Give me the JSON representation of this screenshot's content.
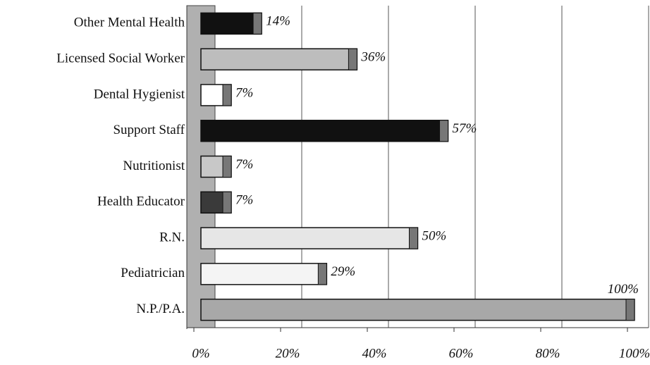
{
  "chart_data": {
    "type": "bar",
    "orientation": "horizontal",
    "categories": [
      "Other Mental Health",
      "Licensed Social Worker",
      "Dental Hygienist",
      "Support Staff",
      "Nutritionist",
      "Health Educator",
      "R.N.",
      "Pediatrician",
      "N.P./P.A."
    ],
    "values": [
      14,
      36,
      7,
      57,
      7,
      7,
      50,
      29,
      100
    ],
    "value_labels": [
      "14%",
      "36%",
      "7%",
      "57%",
      "7%",
      "7%",
      "50%",
      "29%",
      "100%"
    ],
    "colors": [
      "#111111",
      "#bdbdbd",
      "#ffffff",
      "#111111",
      "#c8c8c8",
      "#3a3a3a",
      "#e6e6e6",
      "#f4f4f4",
      "#a8a8a8"
    ],
    "xlim": [
      0,
      100
    ],
    "xticks": [
      {
        "value": 0,
        "label": "0%"
      },
      {
        "value": 20,
        "label": "20%"
      },
      {
        "value": 40,
        "label": "40%"
      },
      {
        "value": 60,
        "label": "60%"
      },
      {
        "value": 80,
        "label": "80%"
      },
      {
        "value": 100,
        "label": "100%"
      }
    ],
    "grid": true
  }
}
